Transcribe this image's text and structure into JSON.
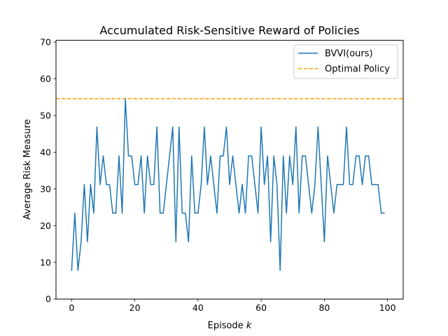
{
  "chart_data": {
    "type": "line",
    "title": "Accumulated Risk-Sensitive Reward of Policies",
    "xlabel": "Episode",
    "xlabel_var": "k",
    "ylabel": "Average Risk Measure",
    "xlim": [
      -4.95,
      104.95
    ],
    "ylim": [
      0,
      70.5
    ],
    "xticks": [
      0,
      20,
      40,
      60,
      80,
      100
    ],
    "yticks": [
      0,
      10,
      20,
      30,
      40,
      50,
      60,
      70
    ],
    "grid": false,
    "legend_position": "top-right",
    "series": [
      {
        "name": "BVVI(ours)",
        "color": "#1f77b4",
        "style": "solid",
        "x": [
          0,
          1,
          2,
          3,
          4,
          5,
          6,
          7,
          8,
          9,
          10,
          11,
          12,
          13,
          14,
          15,
          16,
          17,
          18,
          19,
          20,
          21,
          22,
          23,
          24,
          25,
          26,
          27,
          28,
          29,
          30,
          31,
          32,
          33,
          34,
          35,
          36,
          37,
          38,
          39,
          40,
          41,
          42,
          43,
          44,
          45,
          46,
          47,
          48,
          49,
          50,
          51,
          52,
          53,
          54,
          55,
          56,
          57,
          58,
          59,
          60,
          61,
          62,
          63,
          64,
          65,
          66,
          67,
          68,
          69,
          70,
          71,
          72,
          73,
          74,
          75,
          76,
          77,
          78,
          79,
          80,
          81,
          82,
          83,
          84,
          85,
          86,
          87,
          88,
          89,
          90,
          91,
          92,
          93,
          94,
          95,
          96,
          97,
          98,
          99
        ],
        "y": [
          7.8,
          23.4,
          7.8,
          15.6,
          31.2,
          15.6,
          31.2,
          23.4,
          46.9,
          31.2,
          39.0,
          31.2,
          31.2,
          23.4,
          23.4,
          39.0,
          23.4,
          54.7,
          39.0,
          39.0,
          31.2,
          31.2,
          39.0,
          23.4,
          39.0,
          31.2,
          31.2,
          46.9,
          23.4,
          23.4,
          31.2,
          39.0,
          46.9,
          15.6,
          46.9,
          23.4,
          23.4,
          15.6,
          39.0,
          23.4,
          23.4,
          31.2,
          46.9,
          31.2,
          39.0,
          31.2,
          23.4,
          39.0,
          39.0,
          46.9,
          31.2,
          39.0,
          31.2,
          23.4,
          31.2,
          23.4,
          39.0,
          39.0,
          31.2,
          23.4,
          46.9,
          31.2,
          39.0,
          15.6,
          39.0,
          31.2,
          7.8,
          39.0,
          23.4,
          39.0,
          31.2,
          46.9,
          23.4,
          39.0,
          39.0,
          31.2,
          23.4,
          31.2,
          46.9,
          31.2,
          15.6,
          39.0,
          31.2,
          23.4,
          31.2,
          31.2,
          31.2,
          46.9,
          31.2,
          31.2,
          39.0,
          39.0,
          31.2,
          39.0,
          39.0,
          31.2,
          31.2,
          31.2,
          23.4,
          23.4
        ]
      },
      {
        "name": "Optimal Policy",
        "color": "#ff9f00",
        "style": "dashed",
        "constant_y": 54.6
      }
    ]
  }
}
